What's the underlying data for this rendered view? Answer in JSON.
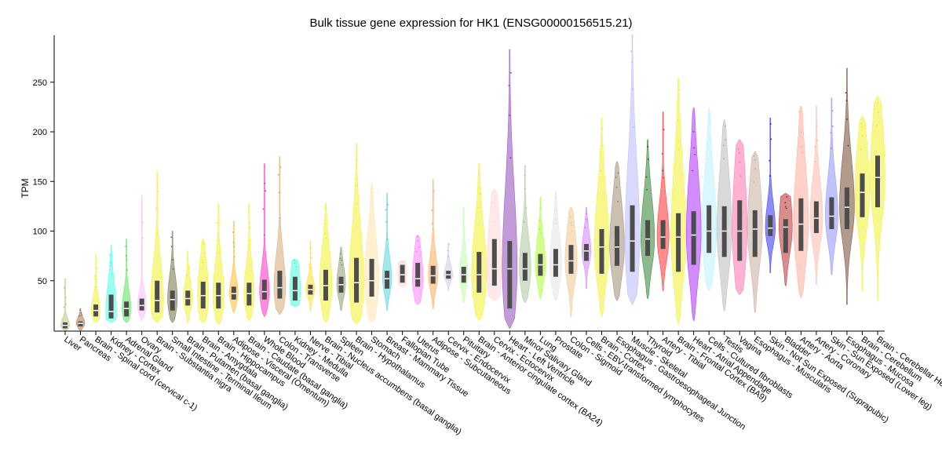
{
  "chart_data": {
    "type": "violin",
    "title": "Bulk tissue gene expression for HK1 (ENSG00000156515.21)",
    "xlabel": "",
    "ylabel": "TPM",
    "ylim": [
      0,
      300
    ],
    "yticks": [
      50,
      100,
      150,
      200,
      250
    ],
    "grid": false,
    "legend": "none",
    "tissues": [
      {
        "name": "Liver",
        "color": "#aabb66",
        "q1": 2,
        "median": 5,
        "q3": 8,
        "min": 0,
        "max": 52
      },
      {
        "name": "Pancreas",
        "color": "#995522",
        "q1": 4,
        "median": 7,
        "q3": 9,
        "min": 0,
        "max": 22
      },
      {
        "name": "Brain - Spinal cord (cervical c-1)",
        "color": "#eeee00",
        "q1": 14,
        "median": 20,
        "q3": 26,
        "min": 8,
        "max": 76
      },
      {
        "name": "Kidney - Cortex",
        "color": "#22ffdd",
        "q1": 12,
        "median": 19,
        "q3": 36,
        "min": 8,
        "max": 86
      },
      {
        "name": "Adrenal Gland",
        "color": "#33dd33",
        "q1": 14,
        "median": 22,
        "q3": 29,
        "min": 8,
        "max": 92
      },
      {
        "name": "Ovary",
        "color": "#ffaaff",
        "q1": 20,
        "median": 25,
        "q3": 32,
        "min": 10,
        "max": 136
      },
      {
        "name": "Brain - Substantia nigra",
        "color": "#eeee00",
        "q1": 18,
        "median": 30,
        "q3": 50,
        "min": 8,
        "max": 160
      },
      {
        "name": "Small Intestine - Terminal Ileum",
        "color": "#555522",
        "q1": 20,
        "median": 31,
        "q3": 40,
        "min": 8,
        "max": 100
      },
      {
        "name": "Brain - Putamen (basal ganglia)",
        "color": "#eeee00",
        "q1": 25,
        "median": 32,
        "q3": 40,
        "min": 8,
        "max": 80
      },
      {
        "name": "Brain - Amygdala",
        "color": "#eeee00",
        "q1": 22,
        "median": 35,
        "q3": 49,
        "min": 8,
        "max": 92
      },
      {
        "name": "Brain - Hippocampus",
        "color": "#eeee00",
        "q1": 22,
        "median": 35,
        "q3": 48,
        "min": 6,
        "max": 128
      },
      {
        "name": "Adipose - Visceral (Omentum)",
        "color": "#ffaa00",
        "q1": 31,
        "median": 37,
        "q3": 44,
        "min": 18,
        "max": 110
      },
      {
        "name": "Brain - Caudate (basal ganglia)",
        "color": "#eeee00",
        "q1": 25,
        "median": 37,
        "q3": 48,
        "min": 10,
        "max": 128
      },
      {
        "name": "Whole Blood",
        "color": "#ff00bb",
        "q1": 31,
        "median": 39,
        "q3": 51,
        "min": 14,
        "max": 168
      },
      {
        "name": "Colon - Transverse",
        "color": "#cc9955",
        "q1": 32,
        "median": 43,
        "q3": 60,
        "min": 16,
        "max": 175
      },
      {
        "name": "Kidney - Medulla",
        "color": "#22ffdd",
        "q1": 30,
        "median": 40,
        "q3": 54,
        "min": 24,
        "max": 72
      },
      {
        "name": "Nerve - Tibial",
        "color": "#ffd700",
        "q1": 36,
        "median": 41,
        "q3": 46,
        "min": 20,
        "max": 90
      },
      {
        "name": "Brain - Nucleus accumbens (basal ganglia)",
        "color": "#eeee00",
        "q1": 30,
        "median": 45,
        "q3": 61,
        "min": 8,
        "max": 128
      },
      {
        "name": "Spleen",
        "color": "#778855",
        "q1": 38,
        "median": 46,
        "q3": 54,
        "min": 20,
        "max": 84
      },
      {
        "name": "Brain - Hypothalamus",
        "color": "#eeee00",
        "q1": 28,
        "median": 48,
        "q3": 73,
        "min": 6,
        "max": 188
      },
      {
        "name": "Stomach",
        "color": "#ffdd99",
        "q1": 34,
        "median": 50,
        "q3": 72,
        "min": 8,
        "max": 148
      },
      {
        "name": "Breast - Mammary Tissue",
        "color": "#33cccc",
        "q1": 42,
        "median": 52,
        "q3": 60,
        "min": 20,
        "max": 138
      },
      {
        "name": "Fallopian Tube",
        "color": "#ffcccc",
        "q1": 48,
        "median": 56,
        "q3": 66,
        "min": 44,
        "max": 70
      },
      {
        "name": "Uterus",
        "color": "#ff66ff",
        "q1": 44,
        "median": 52,
        "q3": 68,
        "min": 26,
        "max": 96
      },
      {
        "name": "Adipose - Subcutaneous",
        "color": "#ff9933",
        "q1": 47,
        "median": 55,
        "q3": 65,
        "min": 22,
        "max": 152
      },
      {
        "name": "Cervix - Endocervix",
        "color": "#ccbbdd",
        "q1": 52,
        "median": 56,
        "q3": 60,
        "min": 40,
        "max": 88
      },
      {
        "name": "Pituitary",
        "color": "#aaff99",
        "q1": 48,
        "median": 56,
        "q3": 64,
        "min": 28,
        "max": 124
      },
      {
        "name": "Brain - Anterior cingulate cortex (BA24)",
        "color": "#eeee00",
        "q1": 38,
        "median": 56,
        "q3": 79,
        "min": 10,
        "max": 168
      },
      {
        "name": "Cervix - Ectocervix",
        "color": "#ffcccc",
        "q1": 45,
        "median": 62,
        "q3": 92,
        "min": 30,
        "max": 142
      },
      {
        "name": "Heart - Left Ventricle",
        "color": "#7722aa",
        "q1": 22,
        "median": 62,
        "q3": 90,
        "min": 2,
        "max": 283
      },
      {
        "name": "Minor Salivary Gland",
        "color": "#99bb88",
        "q1": 50,
        "median": 62,
        "q3": 78,
        "min": 28,
        "max": 166
      },
      {
        "name": "Lung",
        "color": "#99ff00",
        "q1": 55,
        "median": 66,
        "q3": 77,
        "min": 32,
        "max": 134
      },
      {
        "name": "Prostate",
        "color": "#dddddd",
        "q1": 54,
        "median": 66,
        "q3": 82,
        "min": 30,
        "max": 140
      },
      {
        "name": "Colon - Sigmoid",
        "color": "#eebb77",
        "q1": 57,
        "median": 70,
        "q3": 86,
        "min": 14,
        "max": 124
      },
      {
        "name": "Cells - EBV-transformed lymphocytes",
        "color": "#cc66ff",
        "q1": 70,
        "median": 80,
        "q3": 87,
        "min": 42,
        "max": 124
      },
      {
        "name": "Brain - Cortex",
        "color": "#eeee00",
        "q1": 57,
        "median": 84,
        "q3": 102,
        "min": 14,
        "max": 214
      },
      {
        "name": "Esophagus - Gastroesophageal Junction",
        "color": "#8b7355",
        "q1": 65,
        "median": 84,
        "q3": 105,
        "min": 30,
        "max": 170
      },
      {
        "name": "Muscle - Skeletal",
        "color": "#aaaaff",
        "q1": 59,
        "median": 90,
        "q3": 126,
        "min": 26,
        "max": 298
      },
      {
        "name": "Thyroid",
        "color": "#006600",
        "q1": 75,
        "median": 92,
        "q3": 111,
        "min": 32,
        "max": 192
      },
      {
        "name": "Artery - Tibial",
        "color": "#ff0000",
        "q1": 82,
        "median": 94,
        "q3": 111,
        "min": 40,
        "max": 220
      },
      {
        "name": "Brain - Frontal Cortex (BA9)",
        "color": "#eeee00",
        "q1": 59,
        "median": 94,
        "q3": 118,
        "min": 6,
        "max": 254
      },
      {
        "name": "Heart - Atrial Appendage",
        "color": "#9900ff",
        "q1": 66,
        "median": 96,
        "q3": 120,
        "min": 10,
        "max": 224
      },
      {
        "name": "Cells - Cultured fibroblasts",
        "color": "#aaeeff",
        "q1": 78,
        "median": 100,
        "q3": 126,
        "min": 40,
        "max": 224
      },
      {
        "name": "Testis",
        "color": "#aaaaaa",
        "q1": 74,
        "median": 100,
        "q3": 125,
        "min": 20,
        "max": 212
      },
      {
        "name": "Vagina",
        "color": "#ff5599",
        "q1": 70,
        "median": 100,
        "q3": 131,
        "min": 36,
        "max": 192
      },
      {
        "name": "Esophagus - Muscularis",
        "color": "#bb9988",
        "q1": 74,
        "median": 102,
        "q3": 121,
        "min": 18,
        "max": 180
      },
      {
        "name": "Skin - Not Sun Exposed (Suprapubic)",
        "color": "#0000ff",
        "q1": 95,
        "median": 103,
        "q3": 116,
        "min": 58,
        "max": 214
      },
      {
        "name": "Bladder",
        "color": "#aa0000",
        "q1": 78,
        "median": 104,
        "q3": 112,
        "min": 45,
        "max": 138
      },
      {
        "name": "Artery - Aorta",
        "color": "#ff9988",
        "q1": 80,
        "median": 107,
        "q3": 133,
        "min": 33,
        "max": 226
      },
      {
        "name": "Artery - Coronary",
        "color": "#ffaa99",
        "q1": 98,
        "median": 113,
        "q3": 130,
        "min": 46,
        "max": 226
      },
      {
        "name": "Skin - Sun Exposed (Lower leg)",
        "color": "#7777ff",
        "q1": 102,
        "median": 115,
        "q3": 134,
        "min": 56,
        "max": 234
      },
      {
        "name": "Esophagus - Mucosa",
        "color": "#552200",
        "q1": 102,
        "median": 124,
        "q3": 144,
        "min": 26,
        "max": 264
      },
      {
        "name": "Brain - Cerebellum",
        "color": "#eeee00",
        "q1": 114,
        "median": 139,
        "q3": 158,
        "min": 40,
        "max": 216
      },
      {
        "name": "Brain - Cerebellar Hemisphere",
        "color": "#eeee00",
        "q1": 124,
        "median": 154,
        "q3": 176,
        "min": 30,
        "max": 236
      }
    ]
  }
}
